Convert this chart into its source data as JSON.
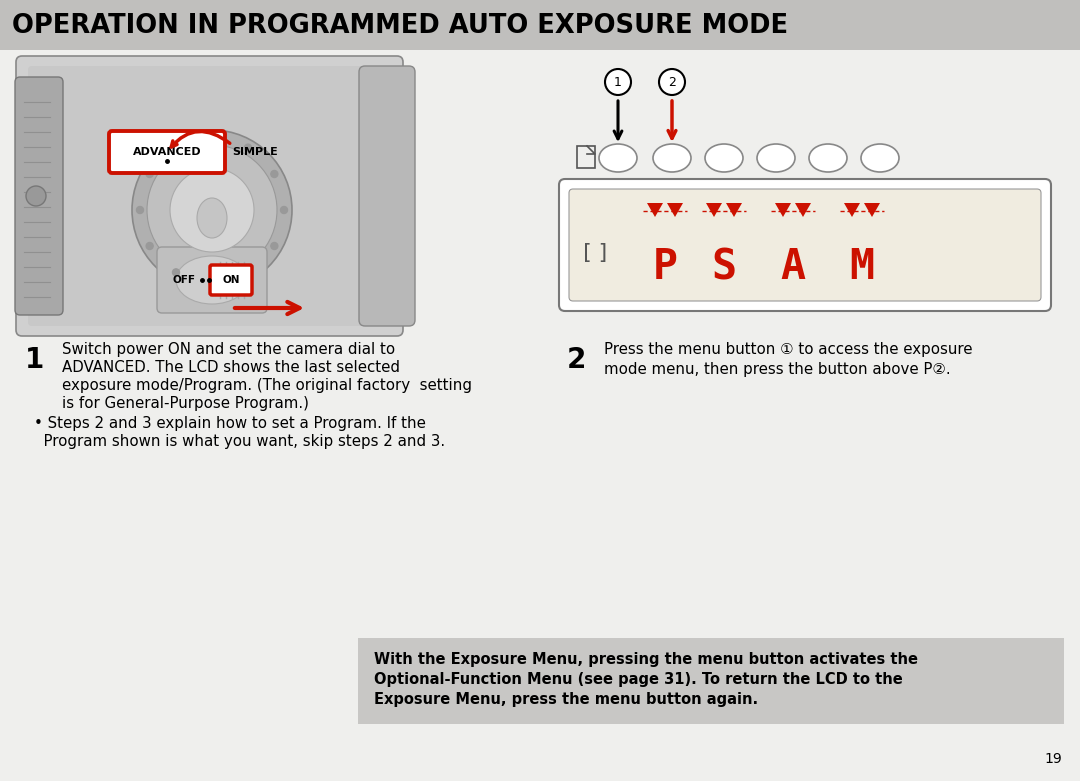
{
  "title": "OPERATION IN PROGRAMMED AUTO EXPOSURE MODE",
  "title_bg": "#c0bfbd",
  "title_color": "#000000",
  "page_bg": "#efefed",
  "page_number": "19",
  "step1_number": "1",
  "step1_line1": "Switch power ON and set the camera dial to",
  "step1_line2": "ADVANCED. The LCD shows the last selected",
  "step1_line3": "exposure mode/Program. (The original factory  setting",
  "step1_line4": "is for General-Purpose Program.)",
  "step1_bullet": "• Steps 2 and 3 explain how to set a Program. If the",
  "step1_bullet2": "  Program shown is what you want, skip steps 2 and 3.",
  "step2_number": "2",
  "step2_line1": "Press the menu button ① to access the exposure",
  "step2_line2": "mode menu, then press the button above P②.",
  "note_bg": "#c8c7c5",
  "note_line1": "With the Exposure Menu, pressing the menu button activates the",
  "note_line2": "Optional-Function Menu (see page 31). To return the LCD to the",
  "note_line3": "Exposure Menu, press the menu button again.",
  "red_color": "#cc1100",
  "cam_bg": "#e8e8e8",
  "cam_border": "#666666",
  "lcd_bg": "#e8e0cc",
  "lcd_border": "#555555"
}
